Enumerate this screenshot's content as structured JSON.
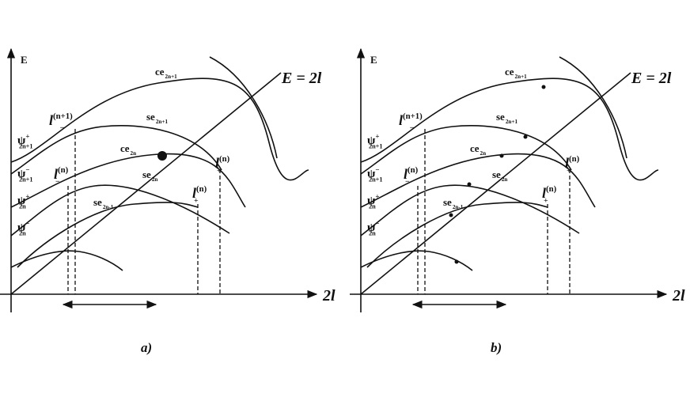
{
  "panels": [
    {
      "axis_y": "E",
      "axis_x": "2l",
      "line_label": "E = 2l",
      "caption": "a)",
      "curve_labels": [
        {
          "base": "ce",
          "sub": "2n+1"
        },
        {
          "base": "se",
          "sub": "2n+1"
        },
        {
          "base": "ce",
          "sub": "2n"
        },
        {
          "base": "se",
          "sub": "2n"
        },
        {
          "base": "se",
          "sub": "2n-1"
        }
      ],
      "state_labels": [
        {
          "base": "ψ",
          "sup": "+",
          "sub": "2n+1"
        },
        {
          "base": "ψ",
          "sup": "−",
          "sub": "2n+1"
        },
        {
          "base": "ψ",
          "sup": "+",
          "sub": "2n"
        },
        {
          "base": "ψ",
          "sup": "−",
          "sub": "2n"
        }
      ],
      "length_labels": [
        {
          "base": "l",
          "sup": "(n+1)",
          "sub": "−"
        },
        {
          "base": "l",
          "sup": "(n)",
          "sub": "−"
        },
        {
          "base": "l",
          "sup": "(n)",
          "sub": "+"
        },
        {
          "base": "l",
          "sup": "(n)",
          "sub": "+"
        }
      ]
    },
    {
      "axis_y": "E",
      "axis_x": "2l",
      "line_label": "E = 2l",
      "caption": "b)",
      "curve_labels": [
        {
          "base": "ce",
          "sub": "2n+1"
        },
        {
          "base": "se",
          "sub": "2n+1"
        },
        {
          "base": "ce",
          "sub": "2n"
        },
        {
          "base": "se",
          "sub": "2n"
        },
        {
          "base": "se",
          "sub": "2n-1"
        }
      ],
      "state_labels": [
        {
          "base": "ψ",
          "sup": "+",
          "sub": "2n+1"
        },
        {
          "base": "ψ",
          "sup": "−",
          "sub": "2n+1"
        },
        {
          "base": "ψ",
          "sup": "+",
          "sub": "2n"
        },
        {
          "base": "ψ",
          "sup": "−",
          "sub": "2n"
        }
      ],
      "length_labels": [
        {
          "base": "l",
          "sup": "(n+1)",
          "sub": "−"
        },
        {
          "base": "l",
          "sup": "(n)",
          "sub": "−"
        },
        {
          "base": "l",
          "sup": "(n)",
          "sub": "+"
        },
        {
          "base": "l",
          "sup": "(n)",
          "sub": "+"
        }
      ]
    }
  ]
}
